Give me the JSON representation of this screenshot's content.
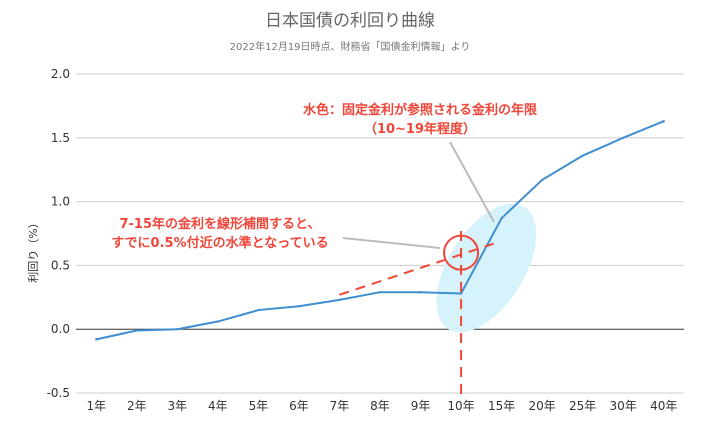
{
  "chart_data": {
    "type": "line",
    "title": "日本国債の利回り曲線",
    "subtitle": "2022年12月19日時点、財務省「国債金利情報」より",
    "xlabel": "",
    "ylabel": "利回り（%）",
    "ylim": [
      -0.5,
      2.0
    ],
    "yticks": [
      "2.0",
      "1.5",
      "1.0",
      "0.5",
      "0.0",
      "-0.5"
    ],
    "ytick_values": [
      2.0,
      1.5,
      1.0,
      0.5,
      0.0,
      -0.5
    ],
    "categories": [
      "1年",
      "2年",
      "3年",
      "4年",
      "5年",
      "6年",
      "7年",
      "8年",
      "9年",
      "10年",
      "15年",
      "20年",
      "25年",
      "30年",
      "40年"
    ],
    "series": [
      {
        "name": "利回り",
        "color": "#3f8fd0",
        "values": [
          -0.08,
          -0.01,
          0.0,
          0.06,
          0.15,
          0.18,
          0.23,
          0.29,
          0.29,
          0.28,
          0.87,
          1.17,
          1.36,
          1.5,
          1.63
        ]
      }
    ],
    "grid": true,
    "annotations": {
      "top_line1": "水色：固定金利が参照される金利の年限",
      "top_line2": "（10~19年程度）",
      "mid_line1": "7-15年の金利を線形補間すると、",
      "mid_line2": "すでに0.5%付近の水準となっている",
      "accent": "#f0463a",
      "highlight": "#d6f3fc"
    }
  }
}
